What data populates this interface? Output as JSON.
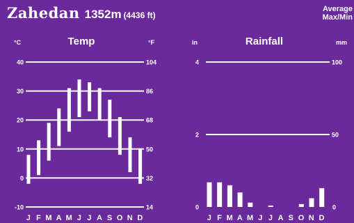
{
  "header": {
    "station": "Zahedan",
    "elevation_m": "1352m",
    "elevation_ft": "(4436 ft)",
    "legend_line1": "Average",
    "legend_line2": "Max/Min"
  },
  "chart_data": [
    {
      "type": "bar",
      "title": "Temp",
      "y_unit_left": "°C",
      "y_unit_right": "°F",
      "categories": [
        "J",
        "F",
        "M",
        "A",
        "M",
        "J",
        "J",
        "A",
        "S",
        "O",
        "N",
        "D"
      ],
      "ylim": [
        -10,
        40
      ],
      "y_ticks_left": [
        "40",
        "30",
        "20",
        "10",
        "0",
        "-10"
      ],
      "y_ticks_right": [
        "104",
        "86",
        "68",
        "50",
        "32",
        "14"
      ],
      "grid": true,
      "series": [
        {
          "name": "Max",
          "values": [
            8,
            13,
            19,
            24,
            31,
            34,
            33,
            31,
            27,
            21,
            14,
            10
          ]
        },
        {
          "name": "Min",
          "values": [
            -2,
            1,
            6,
            11,
            16,
            21,
            23,
            20,
            14,
            8,
            2,
            -2
          ]
        }
      ]
    },
    {
      "type": "bar",
      "title": "Rainfall",
      "y_unit_left": "in",
      "y_unit_right": "mm",
      "categories": [
        "J",
        "F",
        "M",
        "A",
        "M",
        "J",
        "J",
        "A",
        "S",
        "O",
        "N",
        "D"
      ],
      "ylim": [
        0,
        4
      ],
      "y_ticks_left": [
        "4",
        "2",
        "0"
      ],
      "y_ticks_right": [
        "100",
        "50",
        "0"
      ],
      "grid": true,
      "values_mm": [
        17,
        17,
        15,
        10,
        3,
        0,
        1,
        0,
        0,
        2,
        6,
        13
      ]
    }
  ]
}
